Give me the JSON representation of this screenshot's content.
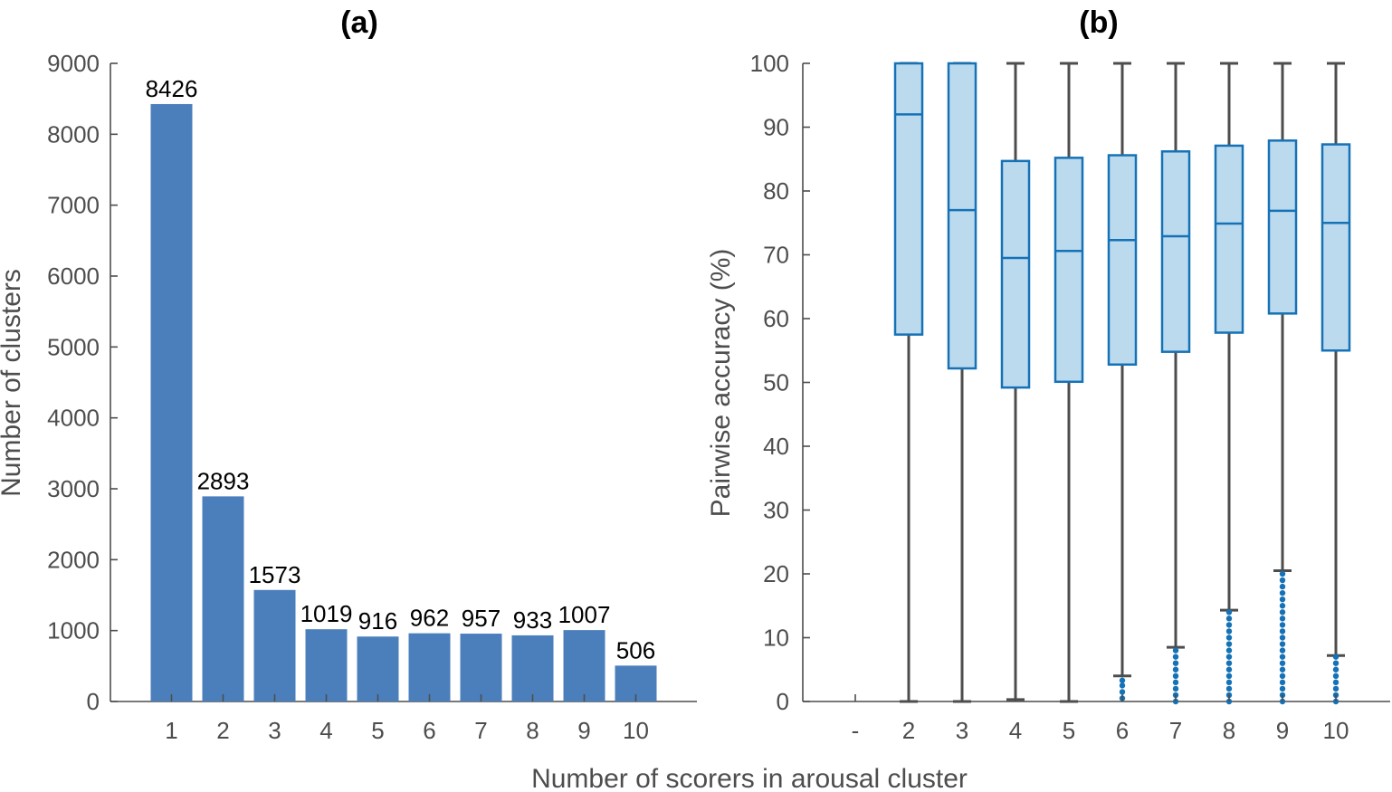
{
  "figure": {
    "shared_xlabel": "Number of scorers in arousal cluster",
    "colors": {
      "bar_fill": "#4b7fbc",
      "box_fill": "#bcdaee",
      "box_edge": "#1572b6",
      "whisker": "#4d4d4d",
      "outlier": "#1572b6",
      "axis": "#4d4d4d",
      "text": "#000000"
    }
  },
  "chart_data": [
    {
      "panel": "(a)",
      "type": "bar",
      "title": "(a)",
      "xlabel": "Number of scorers in arousal cluster",
      "ylabel": "Number of clusters",
      "categories": [
        "1",
        "2",
        "3",
        "4",
        "5",
        "6",
        "7",
        "8",
        "9",
        "10"
      ],
      "values": [
        8426,
        2893,
        1573,
        1019,
        916,
        962,
        957,
        933,
        1007,
        506
      ],
      "data_labels": [
        "8426",
        "2893",
        "1573",
        "1019",
        "916",
        "962",
        "957",
        "933",
        "1007",
        "506"
      ],
      "ylim": [
        0,
        9000
      ],
      "yticks": [
        "0",
        "1000",
        "2000",
        "3000",
        "4000",
        "5000",
        "6000",
        "7000",
        "8000",
        "9000"
      ],
      "grid": false,
      "legend": "none"
    },
    {
      "panel": "(b)",
      "type": "box",
      "title": "(b)",
      "xlabel": "Number of scorers in arousal cluster",
      "ylabel": "Pairwise accuracy (%)",
      "categories": [
        "-",
        "2",
        "3",
        "4",
        "5",
        "6",
        "7",
        "8",
        "9",
        "10"
      ],
      "boxes": [
        null,
        {
          "whisker_low": 0,
          "q1": 57.5,
          "median": 92,
          "q3": 100,
          "whisker_high": 100,
          "outliers": []
        },
        {
          "whisker_low": 0,
          "q1": 52.2,
          "median": 77,
          "q3": 100,
          "whisker_high": 100,
          "outliers": []
        },
        {
          "whisker_low": 0.3,
          "q1": 49.2,
          "median": 69.5,
          "q3": 84.7,
          "whisker_high": 100,
          "outliers": []
        },
        {
          "whisker_low": 0,
          "q1": 50.1,
          "median": 70.6,
          "q3": 85.2,
          "whisker_high": 100,
          "outliers": []
        },
        {
          "whisker_low": 4,
          "q1": 52.8,
          "median": 72.3,
          "q3": 85.6,
          "whisker_high": 100,
          "outliers": [
            0.5,
            1.5,
            2.5,
            3.3
          ]
        },
        {
          "whisker_low": 8.5,
          "q1": 54.8,
          "median": 72.9,
          "q3": 86.2,
          "whisker_high": 100,
          "outliers": [
            0,
            1,
            2,
            3,
            4,
            5,
            6,
            7,
            8
          ]
        },
        {
          "whisker_low": 14.3,
          "q1": 57.8,
          "median": 74.9,
          "q3": 87.1,
          "whisker_high": 100,
          "outliers": [
            0,
            1,
            2,
            3,
            4,
            5,
            6,
            7,
            8,
            9,
            10,
            11,
            12,
            13,
            14
          ]
        },
        {
          "whisker_low": 20.5,
          "q1": 60.8,
          "median": 76.9,
          "q3": 87.9,
          "whisker_high": 100,
          "outliers": [
            0,
            1,
            2,
            3,
            4,
            5,
            6,
            7,
            8,
            9,
            10,
            11,
            12,
            13,
            14,
            15,
            16,
            17,
            18,
            19,
            20
          ]
        },
        {
          "whisker_low": 7.2,
          "q1": 55,
          "median": 75,
          "q3": 87.3,
          "whisker_high": 100,
          "outliers": [
            0,
            1,
            2,
            3,
            4,
            5,
            6,
            7
          ]
        }
      ],
      "ylim": [
        0,
        100
      ],
      "yticks": [
        "0",
        "10",
        "20",
        "30",
        "40",
        "50",
        "60",
        "70",
        "80",
        "90",
        "100"
      ],
      "grid": false,
      "legend": "none"
    }
  ]
}
